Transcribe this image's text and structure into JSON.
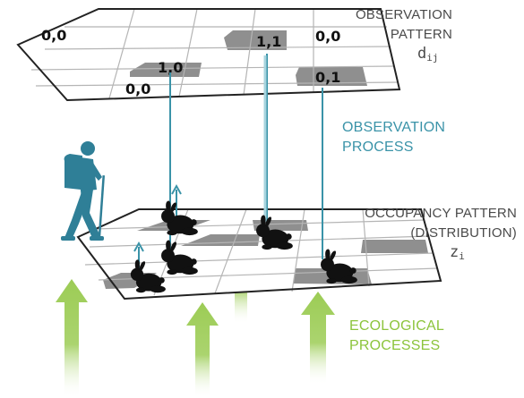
{
  "observation_pattern": {
    "label_line1": "OBSERVATION",
    "label_line2": "PATTERN",
    "symbol_base": "d",
    "symbol_sub": "ij",
    "cell_values": [
      "0,0",
      "1,1",
      "0,0",
      "1,0",
      "0,0",
      "0,1"
    ]
  },
  "observation_process": {
    "label_line1": "OBSERVATION",
    "label_line2": "PROCESS"
  },
  "occupancy_pattern": {
    "label_line1": "OCCUPANCY PATTERN",
    "label_line2": "(DISTRIBUTION)",
    "symbol_base": "z",
    "symbol_sub": "i"
  },
  "ecological_processes": {
    "label_line1": "ECOLOGICAL",
    "label_line2": "PROCESSES"
  },
  "colors": {
    "grid_line": "#222222",
    "grid_inner": "#b5b5b5",
    "cell_gray": "#8f8f8f",
    "blue": "#3a93a8",
    "hiker": "#2f7f97",
    "green": "#9ccc55",
    "rabbit": "#111111"
  }
}
